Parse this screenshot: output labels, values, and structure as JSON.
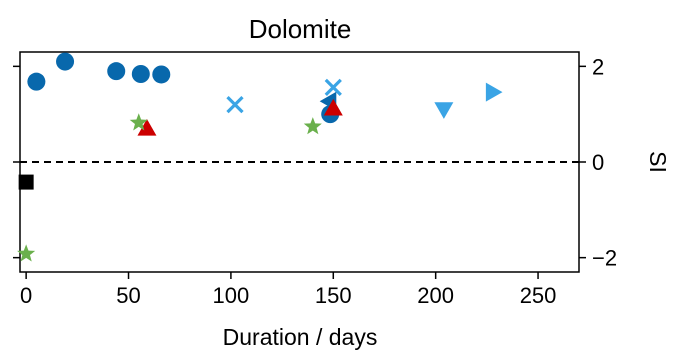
{
  "chart_data": {
    "type": "scatter",
    "title": "Dolomite",
    "xlabel": "Duration / days",
    "ylabel": "SI",
    "xlim": [
      -3,
      270
    ],
    "ylim": [
      -2.3,
      2.3
    ],
    "x_ticks": [
      0,
      50,
      100,
      150,
      200,
      250
    ],
    "x_tick_labels": [
      "0",
      "50",
      "100",
      "150",
      "200",
      "250"
    ],
    "y_ticks": [
      -2,
      0,
      2
    ],
    "y_tick_labels": [
      "−2",
      "0",
      "2"
    ],
    "y_axis_side": "right",
    "reference_line": {
      "y": 0,
      "style": "dashed",
      "color": "#000000"
    },
    "grid": false,
    "legend": "none",
    "series": [
      {
        "marker": "circle",
        "color": "#0868ac",
        "points": [
          [
            5,
            1.68
          ],
          [
            19,
            2.1
          ],
          [
            44,
            1.9
          ],
          [
            56,
            1.84
          ],
          [
            66,
            1.83
          ],
          [
            148.5,
            1.0
          ]
        ]
      },
      {
        "marker": "x",
        "color": "#3aa4e5",
        "points": [
          [
            102,
            1.2
          ],
          [
            150,
            1.56
          ]
        ]
      },
      {
        "marker": "triangle-left",
        "color": "#0868ac",
        "points": [
          [
            148,
            1.27
          ]
        ]
      },
      {
        "marker": "triangle-up",
        "color": "#cc0000",
        "points": [
          [
            59,
            0.7
          ],
          [
            150,
            1.12
          ]
        ]
      },
      {
        "marker": "star",
        "color": "#6ab04c",
        "points": [
          [
            55,
            0.82
          ],
          [
            140,
            0.74
          ],
          [
            0,
            -1.92
          ]
        ]
      },
      {
        "marker": "triangle-down",
        "color": "#3aa4e5",
        "points": [
          [
            204,
            1.1
          ]
        ]
      },
      {
        "marker": "triangle-right",
        "color": "#3aa4e5",
        "points": [
          [
            228,
            1.46
          ]
        ]
      },
      {
        "marker": "square",
        "color": "#000000",
        "points": [
          [
            0,
            -0.42
          ]
        ]
      }
    ]
  }
}
